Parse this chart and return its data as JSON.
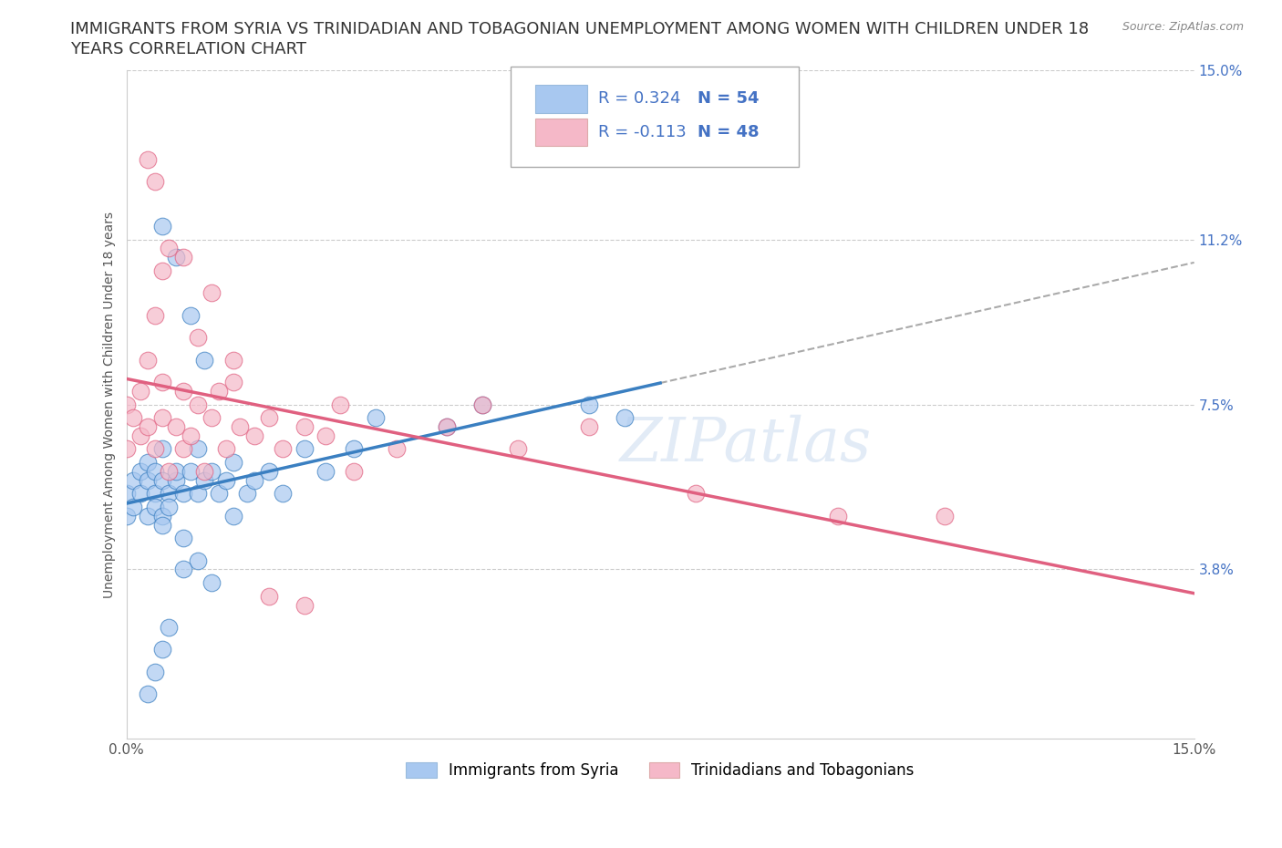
{
  "title_line1": "IMMIGRANTS FROM SYRIA VS TRINIDADIAN AND TOBAGONIAN UNEMPLOYMENT AMONG WOMEN WITH CHILDREN UNDER 18",
  "title_line2": "YEARS CORRELATION CHART",
  "source": "Source: ZipAtlas.com",
  "ylabel": "Unemployment Among Women with Children Under 18 years",
  "xlim": [
    0.0,
    15.0
  ],
  "ylim": [
    0.0,
    15.0
  ],
  "yticks": [
    0.0,
    3.8,
    7.5,
    11.2,
    15.0
  ],
  "ytick_labels": [
    "",
    "3.8%",
    "7.5%",
    "11.2%",
    "15.0%"
  ],
  "xtick_vals": [
    0.0,
    15.0
  ],
  "xtick_labels": [
    "0.0%",
    "15.0%"
  ],
  "syria_color": "#a8c8f0",
  "trinidad_color": "#f5b8c8",
  "syria_line_color": "#3a7fc1",
  "trinidad_line_color": "#e06080",
  "text_color": "#4472c4",
  "R_syria": 0.324,
  "N_syria": 54,
  "R_trinidad": -0.113,
  "N_trinidad": 48,
  "legend_label_syria": "Immigrants from Syria",
  "legend_label_trinidad": "Trinidadians and Tobagonians",
  "syria_points_x": [
    0.0,
    0.0,
    0.1,
    0.1,
    0.2,
    0.2,
    0.3,
    0.3,
    0.3,
    0.4,
    0.4,
    0.4,
    0.5,
    0.5,
    0.5,
    0.5,
    0.6,
    0.6,
    0.7,
    0.7,
    0.8,
    0.8,
    0.9,
    1.0,
    1.0,
    1.1,
    1.2,
    1.3,
    1.4,
    1.5,
    1.5,
    1.7,
    1.8,
    2.0,
    2.2,
    2.5,
    2.8,
    3.2,
    3.5,
    4.5,
    5.0,
    6.5,
    7.0,
    1.0,
    1.2,
    0.8,
    0.6,
    0.5,
    0.4,
    0.3,
    0.5,
    0.7,
    0.9,
    1.1
  ],
  "syria_points_y": [
    5.0,
    5.5,
    5.2,
    5.8,
    6.0,
    5.5,
    5.0,
    6.2,
    5.8,
    5.5,
    6.0,
    5.2,
    5.8,
    6.5,
    5.0,
    4.8,
    5.5,
    5.2,
    5.8,
    6.0,
    5.5,
    4.5,
    6.0,
    5.5,
    6.5,
    5.8,
    6.0,
    5.5,
    5.8,
    6.2,
    5.0,
    5.5,
    5.8,
    6.0,
    5.5,
    6.5,
    6.0,
    6.5,
    7.2,
    7.0,
    7.5,
    7.5,
    7.2,
    4.0,
    3.5,
    3.8,
    2.5,
    2.0,
    1.5,
    1.0,
    11.5,
    10.8,
    9.5,
    8.5
  ],
  "trinidad_points_x": [
    0.0,
    0.0,
    0.1,
    0.2,
    0.2,
    0.3,
    0.3,
    0.4,
    0.4,
    0.5,
    0.5,
    0.6,
    0.7,
    0.8,
    0.8,
    0.9,
    1.0,
    1.1,
    1.2,
    1.3,
    1.4,
    1.5,
    1.6,
    1.8,
    2.0,
    2.2,
    2.5,
    2.8,
    3.0,
    3.2,
    3.8,
    4.5,
    5.0,
    5.5,
    6.5,
    8.0,
    10.0,
    11.5,
    0.3,
    0.4,
    0.5,
    0.6,
    0.8,
    1.0,
    1.2,
    1.5,
    2.0,
    2.5
  ],
  "trinidad_points_y": [
    7.5,
    6.5,
    7.2,
    7.8,
    6.8,
    7.0,
    8.5,
    6.5,
    9.5,
    7.2,
    8.0,
    6.0,
    7.0,
    6.5,
    7.8,
    6.8,
    7.5,
    6.0,
    7.2,
    7.8,
    6.5,
    8.0,
    7.0,
    6.8,
    7.2,
    6.5,
    7.0,
    6.8,
    7.5,
    6.0,
    6.5,
    7.0,
    7.5,
    6.5,
    7.0,
    5.5,
    5.0,
    5.0,
    13.0,
    12.5,
    10.5,
    11.0,
    10.8,
    9.0,
    10.0,
    8.5,
    3.2,
    3.0
  ],
  "background_color": "#ffffff",
  "grid_color": "#cccccc",
  "watermark": "ZIPatlas",
  "title_fontsize": 13,
  "axis_label_fontsize": 10,
  "tick_fontsize": 11,
  "legend_fontsize": 13
}
